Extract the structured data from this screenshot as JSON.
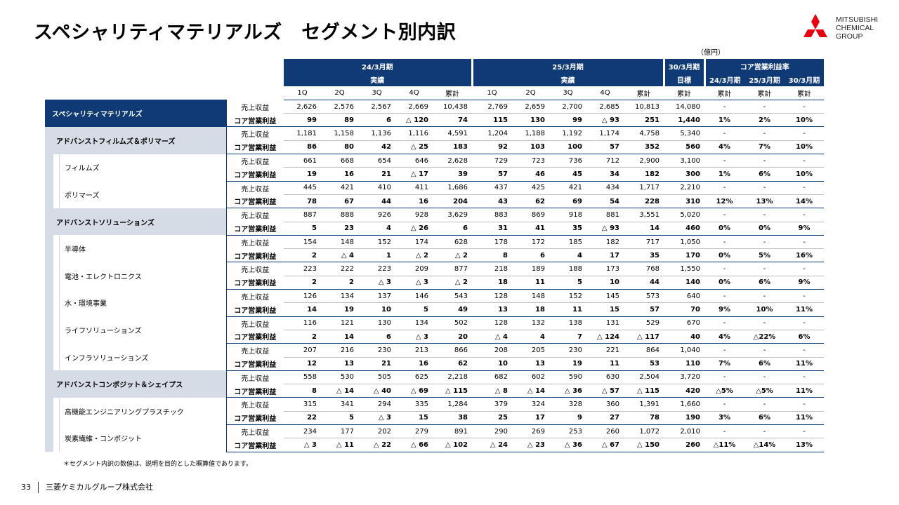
{
  "page": {
    "title": "スペシャリティマテリアルズ　セグメント別内訳",
    "unit": "（億円）",
    "note": "＊セグメント内訳の数値は、説明を目的とした概算値であります。",
    "page_number": "33",
    "footer_company": "三菱ケミカルグループ株式会社",
    "logo_lines": [
      "MITSUBISHI",
      "CHEMICAL",
      "GROUP"
    ],
    "brand_color": "#0f3a75",
    "logo_color": "#e60012"
  },
  "header": {
    "fy24_line1": "24/3月期",
    "fy24_line2": "実績",
    "fy25_line1": "25/3月期",
    "fy25_line2": "実績",
    "fy30_line1": "30/3月期",
    "fy30_line2": "目標",
    "rate_title": "コア営業利益率",
    "rate_cols": [
      "24/3月期",
      "25/3月期",
      "30/3月期"
    ],
    "sub_cols": [
      "1Q",
      "2Q",
      "3Q",
      "4Q",
      "累計",
      "1Q",
      "2Q",
      "3Q",
      "4Q",
      "累計",
      "累計",
      "累計",
      "累計",
      "累計"
    ]
  },
  "labels": {
    "sales": "売上収益",
    "profit": "コア営業利益"
  },
  "segments": [
    {
      "name": "スペシャリティマテリアルズ",
      "level": 1,
      "sales": [
        "2,626",
        "2,576",
        "2,567",
        "2,669",
        "10,438",
        "2,769",
        "2,659",
        "2,700",
        "2,685",
        "10,813",
        "14,080",
        "-",
        "-",
        "-"
      ],
      "profit": [
        "99",
        "89",
        "6",
        "△ 120",
        "74",
        "115",
        "130",
        "99",
        "△ 93",
        "251",
        "1,440",
        "1%",
        "2%",
        "10%"
      ]
    },
    {
      "name": "アドバンストフィルムズ＆ポリマーズ",
      "level": 2,
      "sales": [
        "1,181",
        "1,158",
        "1,136",
        "1,116",
        "4,591",
        "1,204",
        "1,188",
        "1,192",
        "1,174",
        "4,758",
        "5,340",
        "-",
        "-",
        "-"
      ],
      "profit": [
        "86",
        "80",
        "42",
        "△ 25",
        "183",
        "92",
        "103",
        "100",
        "57",
        "352",
        "560",
        "4%",
        "7%",
        "10%"
      ]
    },
    {
      "name": "フィルムズ",
      "level": 3,
      "sales": [
        "661",
        "668",
        "654",
        "646",
        "2,628",
        "729",
        "723",
        "736",
        "712",
        "2,900",
        "3,100",
        "-",
        "-",
        "-"
      ],
      "profit": [
        "19",
        "16",
        "21",
        "△ 17",
        "39",
        "57",
        "46",
        "45",
        "34",
        "182",
        "300",
        "1%",
        "6%",
        "10%"
      ]
    },
    {
      "name": "ポリマーズ",
      "level": 3,
      "sales": [
        "445",
        "421",
        "410",
        "411",
        "1,686",
        "437",
        "425",
        "421",
        "434",
        "1,717",
        "2,210",
        "-",
        "-",
        "-"
      ],
      "profit": [
        "78",
        "67",
        "44",
        "16",
        "204",
        "43",
        "62",
        "69",
        "54",
        "228",
        "310",
        "12%",
        "13%",
        "14%"
      ]
    },
    {
      "name": "アドバンストソリューションズ",
      "level": 2,
      "sales": [
        "887",
        "888",
        "926",
        "928",
        "3,629",
        "883",
        "869",
        "918",
        "881",
        "3,551",
        "5,020",
        "-",
        "-",
        "-"
      ],
      "profit": [
        "5",
        "23",
        "4",
        "△ 26",
        "6",
        "31",
        "41",
        "35",
        "△ 93",
        "14",
        "460",
        "0%",
        "0%",
        "9%"
      ]
    },
    {
      "name": "半導体",
      "level": 3,
      "sales": [
        "154",
        "148",
        "152",
        "174",
        "628",
        "178",
        "172",
        "185",
        "182",
        "717",
        "1,050",
        "-",
        "-",
        "-"
      ],
      "profit": [
        "2",
        "△ 4",
        "1",
        "△ 2",
        "△ 2",
        "8",
        "6",
        "4",
        "17",
        "35",
        "170",
        "0%",
        "5%",
        "16%"
      ]
    },
    {
      "name": "電池・エレクトロニクス",
      "level": 3,
      "sales": [
        "223",
        "222",
        "223",
        "209",
        "877",
        "218",
        "189",
        "188",
        "173",
        "768",
        "1,550",
        "-",
        "-",
        "-"
      ],
      "profit": [
        "2",
        "2",
        "△ 3",
        "△ 3",
        "△ 2",
        "18",
        "11",
        "5",
        "10",
        "44",
        "140",
        "0%",
        "6%",
        "9%"
      ]
    },
    {
      "name": "水・環境事業",
      "level": 3,
      "sales": [
        "126",
        "134",
        "137",
        "146",
        "543",
        "128",
        "148",
        "152",
        "145",
        "573",
        "640",
        "-",
        "-",
        "-"
      ],
      "profit": [
        "14",
        "19",
        "10",
        "5",
        "49",
        "13",
        "18",
        "11",
        "15",
        "57",
        "70",
        "9%",
        "10%",
        "11%"
      ]
    },
    {
      "name": "ライフソリューションズ",
      "level": 3,
      "sales": [
        "116",
        "121",
        "130",
        "134",
        "502",
        "128",
        "132",
        "138",
        "131",
        "529",
        "670",
        "-",
        "-",
        "-"
      ],
      "profit": [
        "2",
        "14",
        "6",
        "△ 3",
        "20",
        "△ 4",
        "4",
        "7",
        "△ 124",
        "△ 117",
        "40",
        "4%",
        "△22%",
        "6%"
      ]
    },
    {
      "name": "インフラソリューションズ",
      "level": 3,
      "sales": [
        "207",
        "216",
        "230",
        "213",
        "866",
        "208",
        "205",
        "230",
        "221",
        "864",
        "1,040",
        "-",
        "-",
        "-"
      ],
      "profit": [
        "12",
        "13",
        "21",
        "16",
        "62",
        "10",
        "13",
        "19",
        "11",
        "53",
        "110",
        "7%",
        "6%",
        "11%"
      ]
    },
    {
      "name": "アドバンストコンポジット＆シェイプス",
      "level": 2,
      "sales": [
        "558",
        "530",
        "505",
        "625",
        "2,218",
        "682",
        "602",
        "590",
        "630",
        "2,504",
        "3,720",
        "-",
        "-",
        "-"
      ],
      "profit": [
        "8",
        "△ 14",
        "△ 40",
        "△ 69",
        "△ 115",
        "△ 8",
        "△ 14",
        "△ 36",
        "△ 57",
        "△ 115",
        "420",
        "△5%",
        "△5%",
        "11%"
      ]
    },
    {
      "name": "高機能エンジニアリングプラスチック",
      "level": 3,
      "sales": [
        "315",
        "341",
        "294",
        "335",
        "1,284",
        "379",
        "324",
        "328",
        "360",
        "1,391",
        "1,660",
        "-",
        "-",
        "-"
      ],
      "profit": [
        "22",
        "5",
        "△ 3",
        "15",
        "38",
        "25",
        "17",
        "9",
        "27",
        "78",
        "190",
        "3%",
        "6%",
        "11%"
      ]
    },
    {
      "name": "炭素繊維・コンポジット",
      "level": 3,
      "sales": [
        "234",
        "177",
        "202",
        "279",
        "891",
        "290",
        "269",
        "253",
        "260",
        "1,072",
        "2,010",
        "-",
        "-",
        "-"
      ],
      "profit": [
        "△ 3",
        "△ 11",
        "△ 22",
        "△ 66",
        "△ 102",
        "△ 24",
        "△ 23",
        "△ 36",
        "△ 67",
        "△ 150",
        "260",
        "△11%",
        "△14%",
        "13%"
      ]
    }
  ]
}
